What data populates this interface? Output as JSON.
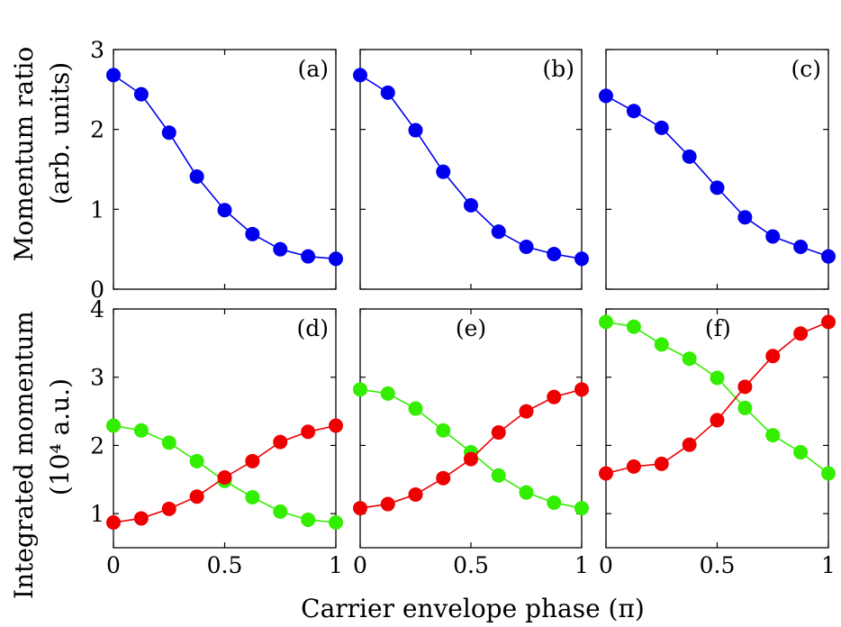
{
  "figure": {
    "xlabel": "Carrier envelope phase (π)",
    "ylabel_top_line1": "Momentum ratio",
    "ylabel_top_line2": "(arb. units)",
    "ylabel_bottom_line1": "Integrated momentum",
    "ylabel_bottom_line2": "(10⁴ a.u.)"
  },
  "chart_data": [
    {
      "type": "line",
      "panel": "(a)",
      "x": [
        0,
        0.125,
        0.25,
        0.375,
        0.5,
        0.625,
        0.75,
        0.875,
        1
      ],
      "series": [
        {
          "color": "#0000ee",
          "values": [
            2.68,
            2.44,
            1.96,
            1.41,
            0.99,
            0.69,
            0.5,
            0.41,
            0.38
          ]
        }
      ],
      "xlim": [
        0,
        1
      ],
      "ylim": [
        0,
        3
      ],
      "xticks": [
        "0",
        "0.5",
        "1"
      ],
      "yticks": [
        "0",
        "1",
        "2",
        "3"
      ]
    },
    {
      "type": "line",
      "panel": "(b)",
      "x": [
        0,
        0.125,
        0.25,
        0.375,
        0.5,
        0.625,
        0.75,
        0.875,
        1
      ],
      "series": [
        {
          "color": "#0000ee",
          "values": [
            2.68,
            2.46,
            1.99,
            1.47,
            1.05,
            0.72,
            0.53,
            0.44,
            0.38
          ]
        }
      ],
      "xlim": [
        0,
        1
      ],
      "ylim": [
        0,
        3
      ],
      "xticks": [
        "0",
        "0.5",
        "1"
      ],
      "yticks": []
    },
    {
      "type": "line",
      "panel": "(c)",
      "x": [
        0,
        0.125,
        0.25,
        0.375,
        0.5,
        0.625,
        0.75,
        0.875,
        1
      ],
      "series": [
        {
          "color": "#0000ee",
          "values": [
            2.42,
            2.23,
            2.02,
            1.66,
            1.27,
            0.9,
            0.66,
            0.53,
            0.41
          ]
        }
      ],
      "xlim": [
        0,
        1
      ],
      "ylim": [
        0,
        3
      ],
      "xticks": [
        "0",
        "0.5",
        "1"
      ],
      "yticks": []
    },
    {
      "type": "line",
      "panel": "(d)",
      "x": [
        0,
        0.125,
        0.25,
        0.375,
        0.5,
        0.625,
        0.75,
        0.875,
        1
      ],
      "series": [
        {
          "color": "#33ee00",
          "values": [
            2.29,
            2.22,
            2.04,
            1.77,
            1.48,
            1.24,
            1.03,
            0.91,
            0.87
          ]
        },
        {
          "color": "#ee0000",
          "values": [
            0.87,
            0.93,
            1.07,
            1.25,
            1.53,
            1.77,
            2.05,
            2.2,
            2.29
          ]
        }
      ],
      "xlim": [
        0,
        1
      ],
      "ylim": [
        0.5,
        4
      ],
      "xticks": [
        "0",
        "0.5",
        "1"
      ],
      "yticks": [
        "1",
        "2",
        "3",
        "4"
      ]
    },
    {
      "type": "line",
      "panel": "(e)",
      "x": [
        0,
        0.125,
        0.25,
        0.375,
        0.5,
        0.625,
        0.75,
        0.875,
        1
      ],
      "series": [
        {
          "color": "#33ee00",
          "values": [
            2.82,
            2.76,
            2.54,
            2.22,
            1.9,
            1.56,
            1.31,
            1.16,
            1.08
          ]
        },
        {
          "color": "#ee0000",
          "values": [
            1.08,
            1.14,
            1.28,
            1.52,
            1.8,
            2.19,
            2.5,
            2.71,
            2.82
          ]
        }
      ],
      "xlim": [
        0,
        1
      ],
      "ylim": [
        0.5,
        4
      ],
      "xticks": [
        "0",
        "0.5",
        "1"
      ],
      "yticks": []
    },
    {
      "type": "line",
      "panel": "(f)",
      "x": [
        0,
        0.125,
        0.25,
        0.375,
        0.5,
        0.625,
        0.75,
        0.875,
        1
      ],
      "series": [
        {
          "color": "#33ee00",
          "values": [
            3.81,
            3.74,
            3.48,
            3.27,
            2.99,
            2.55,
            2.15,
            1.9,
            1.59
          ]
        },
        {
          "color": "#ee0000",
          "values": [
            1.59,
            1.69,
            1.73,
            2.01,
            2.37,
            2.86,
            3.31,
            3.64,
            3.81
          ]
        }
      ],
      "xlim": [
        0,
        1
      ],
      "ylim": [
        0.5,
        4
      ],
      "xticks": [
        "0",
        "0.5",
        "1"
      ],
      "yticks": []
    }
  ]
}
